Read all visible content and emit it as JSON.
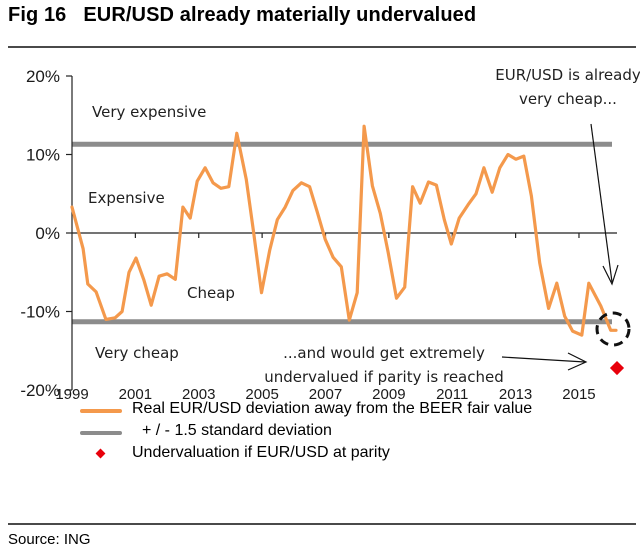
{
  "header": {
    "title": "Fig 16   EUR/USD already materially undervalued"
  },
  "footer": {
    "source": "Source: ING"
  },
  "colors": {
    "series": "#f4994c",
    "band": "#8c8c8c",
    "parity_marker": "#e8000b",
    "axis": "#222222"
  },
  "chart_data": {
    "type": "line",
    "title": "EUR/USD already materially undervalued",
    "xlabel": "",
    "ylabel": "",
    "xlim": [
      1999,
      2016.2
    ],
    "ylim": [
      -20,
      20
    ],
    "x_ticks": [
      1999,
      2001,
      2003,
      2005,
      2007,
      2009,
      2011,
      2013,
      2015
    ],
    "x_tick_labels": [
      "1999",
      "2001",
      "2003",
      "2005",
      "2007",
      "2009",
      "2011",
      "2013",
      "2015"
    ],
    "y_ticks": [
      20,
      10,
      0,
      -10,
      -20
    ],
    "y_tick_labels": [
      "20%",
      "10%",
      "0%",
      "-10%",
      "-20%"
    ],
    "grid": false,
    "series": [
      {
        "name": "Real EUR/USD deviation away from the BEER fair value",
        "kind": "line",
        "x": [
          1999.0,
          1999.35,
          1999.5,
          1999.76,
          2000.07,
          2000.36,
          2000.58,
          2000.8,
          2001.02,
          2001.27,
          2001.5,
          2001.75,
          2002.0,
          2002.26,
          2002.5,
          2002.73,
          2002.95,
          2003.2,
          2003.45,
          2003.7,
          2003.95,
          2004.2,
          2004.5,
          2004.73,
          2004.98,
          2005.24,
          2005.48,
          2005.73,
          2005.97,
          2006.24,
          2006.5,
          2006.74,
          2006.99,
          2007.24,
          2007.5,
          2007.75,
          2008.0,
          2008.22,
          2008.48,
          2008.73,
          2008.98,
          2009.24,
          2009.5,
          2009.75,
          2009.99,
          2010.25,
          2010.5,
          2010.75,
          2010.97,
          2011.22,
          2011.5,
          2011.75,
          2012.0,
          2012.26,
          2012.5,
          2012.76,
          2013.01,
          2013.26,
          2013.5,
          2013.76,
          2014.04,
          2014.3,
          2014.55,
          2014.8,
          2015.09,
          2015.31,
          2015.69,
          2016.0,
          2016.17
        ],
        "y": [
          3.3,
          -2.0,
          -6.5,
          -7.5,
          -11.0,
          -10.8,
          -10.0,
          -5.0,
          -3.2,
          -6.0,
          -9.2,
          -5.5,
          -5.2,
          -5.9,
          3.3,
          1.9,
          6.6,
          8.3,
          6.4,
          5.7,
          5.9,
          12.7,
          6.8,
          0.1,
          -7.6,
          -2.2,
          1.7,
          3.3,
          5.4,
          6.4,
          5.9,
          2.7,
          -0.8,
          -3.1,
          -4.3,
          -11.1,
          -7.6,
          13.6,
          6.0,
          2.5,
          -2.5,
          -8.3,
          -6.9,
          5.9,
          3.8,
          6.5,
          6.1,
          1.7,
          -1.4,
          1.9,
          3.6,
          5.0,
          8.3,
          5.2,
          8.3,
          10.0,
          9.4,
          9.8,
          4.7,
          -3.8,
          -9.6,
          -6.4,
          -10.6,
          -12.5,
          -13.0,
          -6.4,
          -9.3,
          -12.4,
          -12.4
        ]
      },
      {
        "name": "+ / - 1.5 standard deviation",
        "kind": "band",
        "upper": 11.3,
        "lower": -11.3
      },
      {
        "name": "Undervaluation if EUR/USD at parity",
        "kind": "point",
        "x": [
          2016.2
        ],
        "y": [
          -17.2
        ]
      }
    ],
    "zone_labels": [
      "Very expensive",
      "Expensive",
      "Cheap",
      "Very cheap"
    ],
    "annotations": [
      {
        "text_lines": [
          "EUR/USD is already",
          "very cheap..."
        ]
      },
      {
        "text_lines": [
          "...and would get extremely",
          "undervalued if parity is reached"
        ]
      }
    ],
    "legend": {
      "placement": "bottom",
      "entries": [
        "Real EUR/USD deviation away from the BEER fair value",
        "+ / - 1.5 standard deviation",
        "Undervaluation if EUR/USD at parity"
      ]
    }
  }
}
